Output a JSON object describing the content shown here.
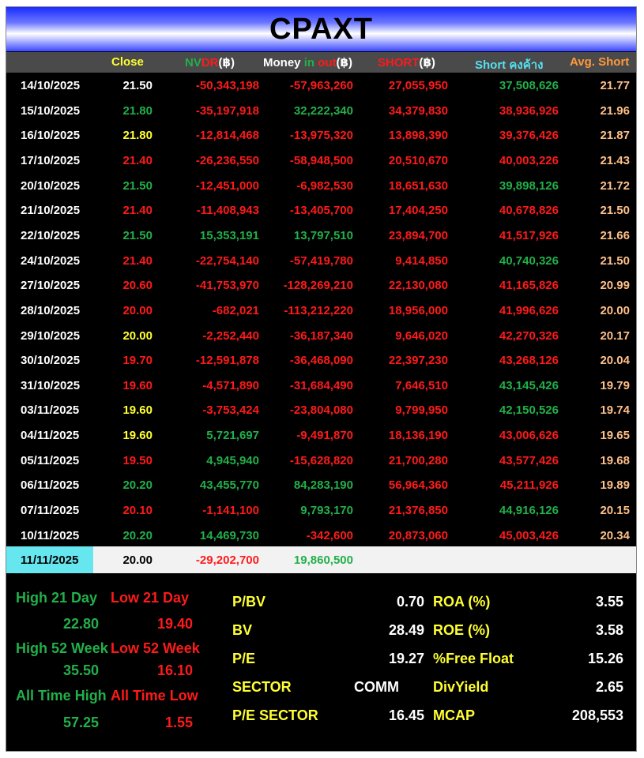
{
  "title": "CPAXT",
  "headers": {
    "close": "Close",
    "nvdr_a": "NV",
    "nvdr_b": "DR",
    "nvdr_c": "(฿)",
    "money_a": "Money ",
    "money_b": "in",
    "money_c": " ",
    "money_d": "out",
    "money_e": "(฿)",
    "short_a": "SHORT",
    "short_b": "(฿)",
    "short_out": "Short คงค้าง",
    "avg_short": "Avg. Short"
  },
  "rows": [
    {
      "date": "14/10/2025",
      "close": "21.50",
      "close_c": "white",
      "nvdr": "-50,343,198",
      "nvdr_c": "red",
      "money": "-57,963,260",
      "money_c": "red",
      "short": "27,055,950",
      "short_c": "red",
      "sout": "37,508,626",
      "sout_c": "green",
      "avg": "21.77"
    },
    {
      "date": "15/10/2025",
      "close": "21.80",
      "close_c": "green",
      "nvdr": "-35,197,918",
      "nvdr_c": "red",
      "money": "32,222,340",
      "money_c": "green",
      "short": "34,379,830",
      "short_c": "red",
      "sout": "38,936,926",
      "sout_c": "red",
      "avg": "21.96"
    },
    {
      "date": "16/10/2025",
      "close": "21.80",
      "close_c": "yellow",
      "nvdr": "-12,814,468",
      "nvdr_c": "red",
      "money": "-13,975,320",
      "money_c": "red",
      "short": "13,898,390",
      "short_c": "red",
      "sout": "39,376,426",
      "sout_c": "red",
      "avg": "21.87"
    },
    {
      "date": "17/10/2025",
      "close": "21.40",
      "close_c": "red",
      "nvdr": "-26,236,550",
      "nvdr_c": "red",
      "money": "-58,948,500",
      "money_c": "red",
      "short": "20,510,670",
      "short_c": "red",
      "sout": "40,003,226",
      "sout_c": "red",
      "avg": "21.43"
    },
    {
      "date": "20/10/2025",
      "close": "21.50",
      "close_c": "green",
      "nvdr": "-12,451,000",
      "nvdr_c": "red",
      "money": "-6,982,530",
      "money_c": "red",
      "short": "18,651,630",
      "short_c": "red",
      "sout": "39,898,126",
      "sout_c": "green",
      "avg": "21.72"
    },
    {
      "date": "21/10/2025",
      "close": "21.40",
      "close_c": "red",
      "nvdr": "-11,408,943",
      "nvdr_c": "red",
      "money": "-13,405,700",
      "money_c": "red",
      "short": "17,404,250",
      "short_c": "red",
      "sout": "40,678,826",
      "sout_c": "red",
      "avg": "21.50"
    },
    {
      "date": "22/10/2025",
      "close": "21.50",
      "close_c": "green",
      "nvdr": "15,353,191",
      "nvdr_c": "green",
      "money": "13,797,510",
      "money_c": "green",
      "short": "23,894,700",
      "short_c": "red",
      "sout": "41,517,926",
      "sout_c": "red",
      "avg": "21.66"
    },
    {
      "date": "24/10/2025",
      "close": "21.40",
      "close_c": "red",
      "nvdr": "-22,754,140",
      "nvdr_c": "red",
      "money": "-57,419,780",
      "money_c": "red",
      "short": "9,414,850",
      "short_c": "red",
      "sout": "40,740,326",
      "sout_c": "green",
      "avg": "21.50"
    },
    {
      "date": "27/10/2025",
      "close": "20.60",
      "close_c": "red",
      "nvdr": "-41,753,970",
      "nvdr_c": "red",
      "money": "-128,269,210",
      "money_c": "red",
      "short": "22,130,080",
      "short_c": "red",
      "sout": "41,165,826",
      "sout_c": "red",
      "avg": "20.99"
    },
    {
      "date": "28/10/2025",
      "close": "20.00",
      "close_c": "red",
      "nvdr": "-682,021",
      "nvdr_c": "red",
      "money": "-113,212,220",
      "money_c": "red",
      "short": "18,956,000",
      "short_c": "red",
      "sout": "41,996,626",
      "sout_c": "red",
      "avg": "20.00"
    },
    {
      "date": "29/10/2025",
      "close": "20.00",
      "close_c": "yellow",
      "nvdr": "-2,252,440",
      "nvdr_c": "red",
      "money": "-36,187,340",
      "money_c": "red",
      "short": "9,646,020",
      "short_c": "red",
      "sout": "42,270,326",
      "sout_c": "red",
      "avg": "20.17"
    },
    {
      "date": "30/10/2025",
      "close": "19.70",
      "close_c": "red",
      "nvdr": "-12,591,878",
      "nvdr_c": "red",
      "money": "-36,468,090",
      "money_c": "red",
      "short": "22,397,230",
      "short_c": "red",
      "sout": "43,268,126",
      "sout_c": "red",
      "avg": "20.04"
    },
    {
      "date": "31/10/2025",
      "close": "19.60",
      "close_c": "red",
      "nvdr": "-4,571,890",
      "nvdr_c": "red",
      "money": "-31,684,490",
      "money_c": "red",
      "short": "7,646,510",
      "short_c": "red",
      "sout": "43,145,426",
      "sout_c": "green",
      "avg": "19.79"
    },
    {
      "date": "03/11/2025",
      "close": "19.60",
      "close_c": "yellow",
      "nvdr": "-3,753,424",
      "nvdr_c": "red",
      "money": "-23,804,080",
      "money_c": "red",
      "short": "9,799,950",
      "short_c": "red",
      "sout": "42,150,526",
      "sout_c": "green",
      "avg": "19.74"
    },
    {
      "date": "04/11/2025",
      "close": "19.60",
      "close_c": "yellow",
      "nvdr": "5,721,697",
      "nvdr_c": "green",
      "money": "-9,491,870",
      "money_c": "red",
      "short": "18,136,190",
      "short_c": "red",
      "sout": "43,006,626",
      "sout_c": "red",
      "avg": "19.65"
    },
    {
      "date": "05/11/2025",
      "close": "19.50",
      "close_c": "red",
      "nvdr": "4,945,940",
      "nvdr_c": "green",
      "money": "-15,628,820",
      "money_c": "red",
      "short": "21,700,280",
      "short_c": "red",
      "sout": "43,577,426",
      "sout_c": "red",
      "avg": "19.68"
    },
    {
      "date": "06/11/2025",
      "close": "20.20",
      "close_c": "green",
      "nvdr": "43,455,770",
      "nvdr_c": "green",
      "money": "84,283,190",
      "money_c": "green",
      "short": "56,964,360",
      "short_c": "red",
      "sout": "45,211,926",
      "sout_c": "red",
      "avg": "19.89"
    },
    {
      "date": "07/11/2025",
      "close": "20.10",
      "close_c": "red",
      "nvdr": "-1,141,100",
      "nvdr_c": "red",
      "money": "9,793,170",
      "money_c": "green",
      "short": "21,376,850",
      "short_c": "red",
      "sout": "44,916,126",
      "sout_c": "green",
      "avg": "20.15"
    },
    {
      "date": "10/11/2025",
      "close": "20.20",
      "close_c": "green",
      "nvdr": "14,469,730",
      "nvdr_c": "green",
      "money": "-342,600",
      "money_c": "red",
      "short": "20,873,060",
      "short_c": "red",
      "sout": "45,003,426",
      "sout_c": "red",
      "avg": "20.34"
    }
  ],
  "last_row": {
    "date": "11/11/2025",
    "close": "20.00",
    "nvdr": "-29,202,700",
    "money": "19,860,500"
  },
  "stats": {
    "high21_label": "High 21 Day",
    "low21_label": "Low 21 Day",
    "high21": "22.80",
    "low21": "19.40",
    "high52_label": "High 52 Week",
    "low52_label": "Low 52 Week",
    "high52": "35.50",
    "low52": "16.10",
    "ath_label": "All Time High",
    "atl_label": "All Time Low",
    "ath": "57.25",
    "atl": "1.55"
  },
  "fundamentals": {
    "pbv_label": "P/BV",
    "pbv": "0.70",
    "bv_label": "BV",
    "bv": "28.49",
    "pe_label": "P/E",
    "pe": "19.27",
    "sector_label": "SECTOR",
    "sector": "COMM",
    "pesector_label": "P/E SECTOR",
    "pesector": "16.45",
    "roa_label": "ROA (%)",
    "roa": "3.55",
    "roe_label": "ROE (%)",
    "roe": "3.58",
    "ff_label": "%Free Float",
    "ff": "15.26",
    "dy_label": "DivYield",
    "dy": "2.65",
    "mcap_label": "MCAP",
    "mcap": "208,553"
  },
  "colors": {
    "red": "#ff1a1a",
    "green": "#22b04a",
    "yellow": "#ffff33",
    "orange": "#ffc08a",
    "cyan": "#66e6ee",
    "header_gray": "#4a4a4a"
  }
}
